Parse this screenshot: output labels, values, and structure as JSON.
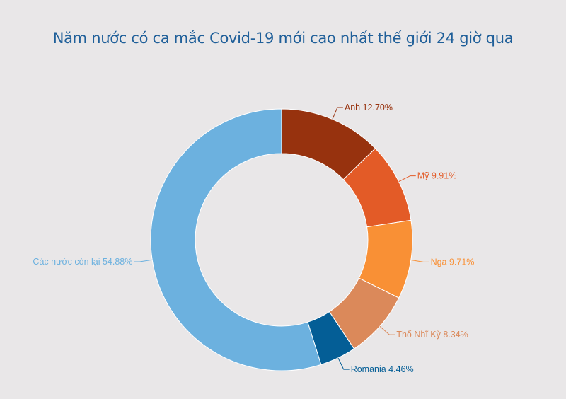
{
  "chart_data": {
    "type": "pie",
    "title": "Năm nước có ca mắc Covid-19 mới cao nhất thế giới 24 giờ qua",
    "donut": true,
    "series": [
      {
        "name": "Anh",
        "value": 12.7,
        "label": "Anh 12.70%",
        "color": "#97320e"
      },
      {
        "name": "Mỹ",
        "value": 9.91,
        "label": "Mỹ 9.91%",
        "color": "#e35b27"
      },
      {
        "name": "Nga",
        "value": 9.71,
        "label": "Nga 9.71%",
        "color": "#f99035"
      },
      {
        "name": "Thổ Nhĩ Kỳ",
        "value": 8.34,
        "label": "Thổ Nhĩ Kỳ 8.34%",
        "color": "#db895a"
      },
      {
        "name": "Romania",
        "value": 4.46,
        "label": "Romania 4.46%",
        "color": "#045e96"
      },
      {
        "name": "Các nước còn lại",
        "value": 54.88,
        "label": "Các nước còn lại 54.88%",
        "color": "#6cb1df"
      }
    ],
    "label_colors": [
      "#97320e",
      "#e35b27",
      "#f99035",
      "#db895a",
      "#045e96",
      "#6cb1df"
    ]
  }
}
